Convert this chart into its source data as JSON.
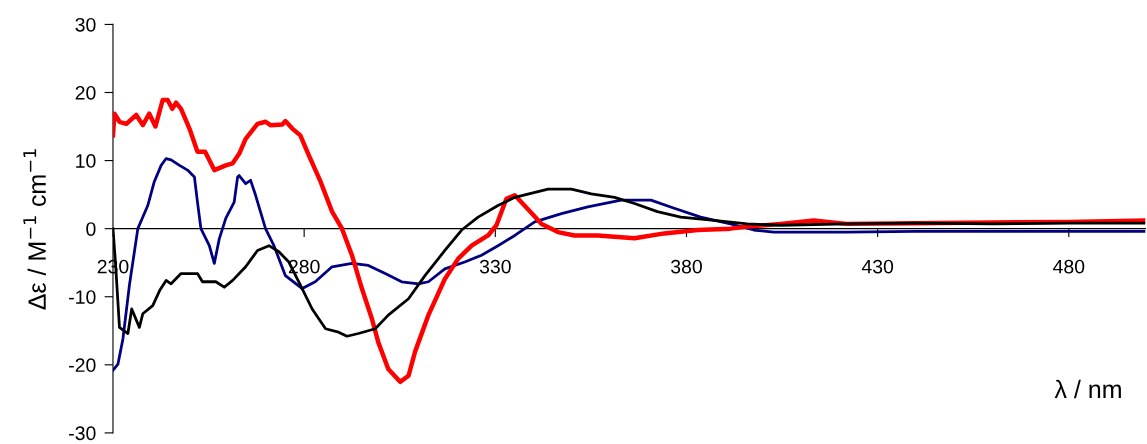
{
  "chart_data": {
    "type": "line",
    "xlabel": "λ / nm",
    "ylabel": "Δε / M$^{−1}$ cm$^{−1}$",
    "xlim": [
      230,
      500
    ],
    "xticks": [
      230,
      280,
      330,
      380,
      430,
      480
    ],
    "ylim": [
      -30,
      30
    ],
    "yticks": [
      -30,
      -20,
      -10,
      0,
      10,
      20,
      30
    ],
    "grid": false,
    "legend": false,
    "marker": "none",
    "line_style": "solid",
    "series": [
      {
        "color": "#000080",
        "x": [
          230,
          231.3,
          232.6,
          234.3,
          236.5,
          239.1,
          240.8,
          242.6,
          243.9,
          245.2,
          247.4,
          249.5,
          251.3,
          252.1,
          253,
          255.2,
          256.5,
          257.8,
          259.5,
          261.7,
          262.6,
          263,
          264.7,
          266,
          267.3,
          269.9,
          272.1,
          275.1,
          279.5,
          282.9,
          287.3,
          292.5,
          296.8,
          301.2,
          305.5,
          309.9,
          312.5,
          316.8,
          322,
          326.4,
          330.7,
          335.1,
          340.3,
          347.3,
          354.2,
          362.9,
          370.7,
          376.8,
          383.7,
          391.5,
          397.6,
          402.8,
          421.9,
          440,
          460,
          480,
          500
        ],
        "values": [
          -20.8,
          -19.9,
          -16.2,
          -8.3,
          0,
          3.4,
          6.9,
          9.3,
          10.3,
          10.1,
          9.3,
          8.6,
          7.6,
          3.9,
          0,
          -2.5,
          -5.1,
          -1.5,
          1.5,
          3.9,
          7.6,
          7.8,
          6.6,
          7.1,
          4.9,
          0,
          -2.5,
          -6.9,
          -8.8,
          -7.8,
          -5.6,
          -5.1,
          -5.4,
          -6.6,
          -7.8,
          -8.1,
          -7.8,
          -5.9,
          -4.9,
          -3.9,
          -2.5,
          -1.0,
          1.0,
          2.2,
          3.2,
          4.2,
          4.2,
          3.0,
          1.7,
          0.7,
          -0.2,
          -0.5,
          -0.5,
          -0.4,
          -0.4,
          -0.4,
          -0.4
        ]
      },
      {
        "color": "#000000",
        "x": [
          230,
          230.7,
          231.7,
          233.9,
          234.9,
          236.9,
          237.8,
          240.4,
          242.2,
          243.9,
          245.2,
          247.8,
          252.1,
          253.4,
          255.2,
          256.9,
          259.1,
          261.3,
          264.7,
          267.8,
          270.8,
          273.4,
          276,
          278.6,
          282.1,
          285.6,
          289,
          291.2,
          294.2,
          298.6,
          302,
          307.3,
          311.6,
          316.8,
          321.2,
          325.5,
          330.7,
          335.1,
          343.8,
          349.9,
          355.1,
          361.2,
          366.4,
          372.4,
          378.5,
          387.2,
          395.9,
          404.6,
          421.9,
          440,
          460,
          480,
          500
        ],
        "values": [
          0,
          -5.4,
          -14.5,
          -15.4,
          -11.8,
          -14.5,
          -12.5,
          -11.3,
          -9.1,
          -7.6,
          -8.1,
          -6.6,
          -6.6,
          -7.8,
          -7.8,
          -7.8,
          -8.6,
          -7.6,
          -5.6,
          -3.2,
          -2.5,
          -3.4,
          -4.9,
          -7.8,
          -11.8,
          -14.7,
          -15.2,
          -15.8,
          -15.4,
          -14.7,
          -12.7,
          -10.3,
          -6.9,
          -3.2,
          -0.2,
          1.7,
          3.4,
          4.6,
          5.8,
          5.8,
          5.1,
          4.6,
          3.7,
          2.5,
          1.7,
          1.2,
          0.7,
          0.5,
          0.7,
          0.8,
          0.7,
          0.8,
          0.8
        ]
      },
      {
        "color": "#ff0000",
        "x": [
          230,
          230.4,
          231.7,
          233.5,
          236.1,
          237.8,
          239.5,
          241.1,
          243,
          244.3,
          245.5,
          246.5,
          247.8,
          250,
          252.1,
          254.1,
          256.5,
          259.5,
          261.3,
          263,
          264.7,
          267.8,
          269.9,
          271.2,
          274.3,
          275.1,
          276.9,
          279,
          281.2,
          284.3,
          287.3,
          289.9,
          292.5,
          295.1,
          297.7,
          299.4,
          302,
          305.1,
          307.3,
          309,
          312.5,
          316.8,
          320.3,
          323.8,
          328.1,
          330.3,
          332.9,
          335.1,
          338.3,
          342.1,
          346.4,
          350.7,
          356.8,
          366.4,
          374.2,
          382.9,
          391.5,
          395.9,
          404.6,
          413.3,
          421.9,
          440,
          460,
          480,
          500
        ],
        "values": [
          13.7,
          16.9,
          15.7,
          15.4,
          16.7,
          15.2,
          16.9,
          15.0,
          18.9,
          18.9,
          17.6,
          18.5,
          17.6,
          14.7,
          11.3,
          11.3,
          8.6,
          9.3,
          9.6,
          11.0,
          13.2,
          15.4,
          15.7,
          15.2,
          15.3,
          15.8,
          14.7,
          13.7,
          10.8,
          6.9,
          2.5,
          0,
          -3.9,
          -8.8,
          -13.2,
          -16.7,
          -20.6,
          -22.5,
          -21.6,
          -18.1,
          -12.7,
          -7.4,
          -4.4,
          -2.5,
          -1.0,
          0.5,
          4.4,
          4.9,
          3.0,
          0.7,
          -0.5,
          -1.0,
          -1.0,
          -1.4,
          -0.7,
          -0.2,
          0,
          0.3,
          0.7,
          1.2,
          0.7,
          0.8,
          0.9,
          1.0,
          1.2
        ]
      }
    ]
  }
}
